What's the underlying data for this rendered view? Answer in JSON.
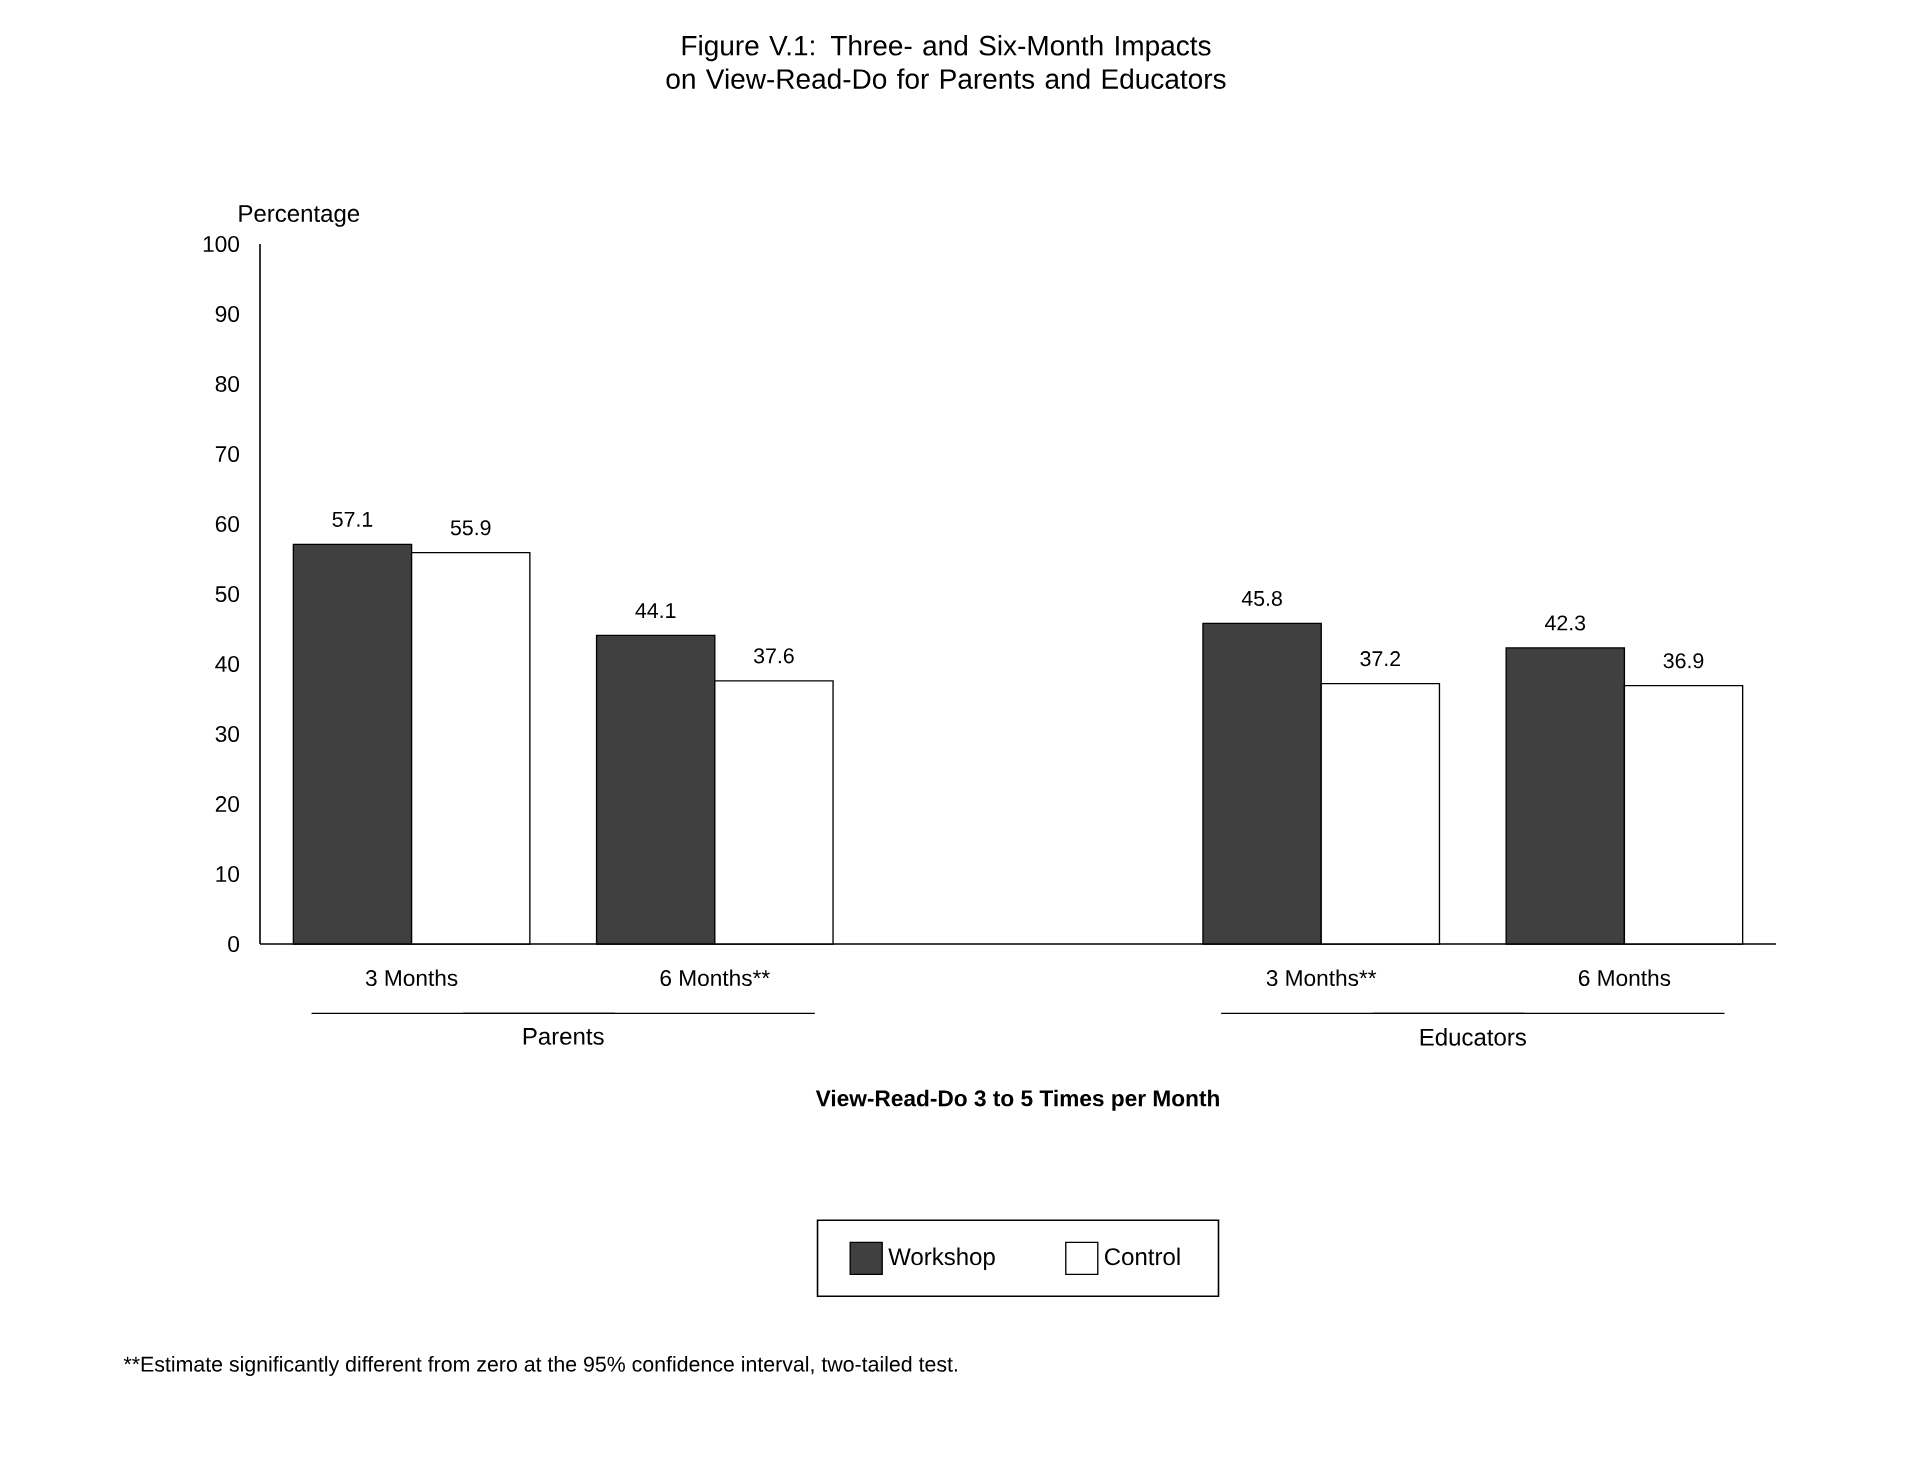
{
  "chart_data": {
    "type": "bar",
    "title": "Figure V.1:  Three- and Six-Month Impacts on View-Read-Do for Parents and Educators",
    "ylabel": "Percentage",
    "xlabel": "View-Read-Do 3 to 5 Times per Month",
    "categories": [
      "3 Months",
      "6 Months**",
      null,
      "3 Months**",
      "6 Months"
    ],
    "series": [
      {
        "name": "Workshop",
        "color": "#404040",
        "values": [
          57.1,
          44.1,
          null,
          45.8,
          42.3
        ]
      },
      {
        "name": "Control",
        "color": "#ffffff",
        "values": [
          55.9,
          37.6,
          null,
          37.2,
          36.9
        ]
      }
    ],
    "ylim": [
      0,
      100
    ],
    "yticks": [
      0,
      10,
      20,
      30,
      40,
      50,
      60,
      70,
      80,
      90,
      100
    ],
    "data_labels": true,
    "legend": "bottom",
    "grid": false,
    "annotations": [
      "Parents",
      "Educators",
      "**Estimate significantly different from zero at the 95% confidence interval, two-tailed test."
    ]
  }
}
